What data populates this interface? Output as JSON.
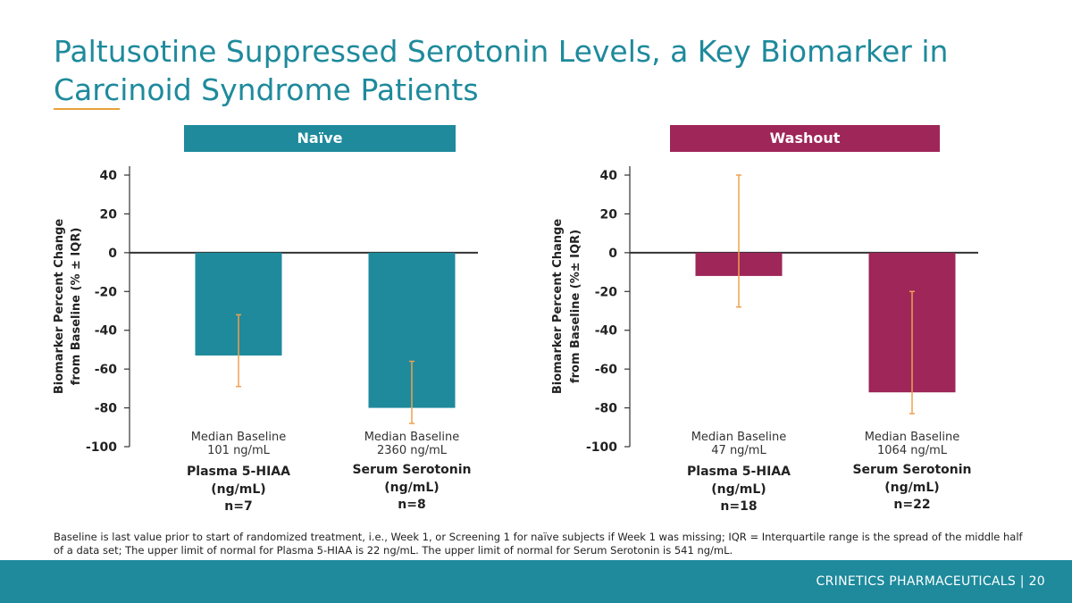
{
  "slide": {
    "title": "Paltusotine Suppressed Serotonin Levels, a Key Biomarker in Carcinoid Syndrome Patients",
    "footnote": "Baseline is last value prior to start of randomized treatment, i.e., Week 1, or Screening 1 for naïve subjects if Week 1 was missing; IQR = Interquartile range is the spread of the middle half of a data set; The upper limit of normal for Plasma 5-HIAA is 22 ng/mL. The upper limit of normal for Serum Serotonin is 541 ng/mL.",
    "footer": "CRINETICS PHARMACEUTICALS  |  20"
  },
  "colors": {
    "title": "#1e8a9c",
    "naive": "#1e8a9c",
    "washout": "#9e2659",
    "error_bar": "#f0a050",
    "footer_bg": "#1e8a9c",
    "rule": "#e8a13a"
  },
  "chart_data": [
    {
      "type": "bar",
      "title": "Naïve",
      "ylabel": "Biomarker Percent Change from Baseline (% ± IQR)",
      "ylim": [
        -100,
        40
      ],
      "yticks": [
        40,
        20,
        0,
        -20,
        -40,
        -60,
        -80,
        -100
      ],
      "categories": [
        {
          "baseline_label": "Median Baseline",
          "baseline_value": "101 ng/mL",
          "name": "Plasma 5-HIAA",
          "unit": "(ng/mL)",
          "n": "n=7"
        },
        {
          "baseline_label": "Median Baseline",
          "baseline_value": "2360 ng/mL",
          "name": "Serum Serotonin",
          "unit": "(ng/mL)",
          "n": "n=8"
        }
      ],
      "values": [
        -53,
        -80
      ],
      "error_low": [
        -69,
        -88
      ],
      "error_high": [
        -32,
        -56
      ]
    },
    {
      "type": "bar",
      "title": "Washout",
      "ylabel": "Biomarker Percent Change from Baseline (%± IQR)",
      "ylim": [
        -100,
        40
      ],
      "yticks": [
        40,
        20,
        0,
        -20,
        -40,
        -60,
        -80,
        -100
      ],
      "categories": [
        {
          "baseline_label": "Median Baseline",
          "baseline_value": "47 ng/mL",
          "name": "Plasma 5-HIAA",
          "unit": "(ng/mL)",
          "n": "n=18"
        },
        {
          "baseline_label": "Median Baseline",
          "baseline_value": "1064 ng/mL",
          "name": "Serum Serotonin",
          "unit": "(ng/mL)",
          "n": "n=22"
        }
      ],
      "values": [
        -12,
        -72
      ],
      "error_low": [
        -28,
        -83
      ],
      "error_high": [
        40,
        -20
      ]
    }
  ]
}
